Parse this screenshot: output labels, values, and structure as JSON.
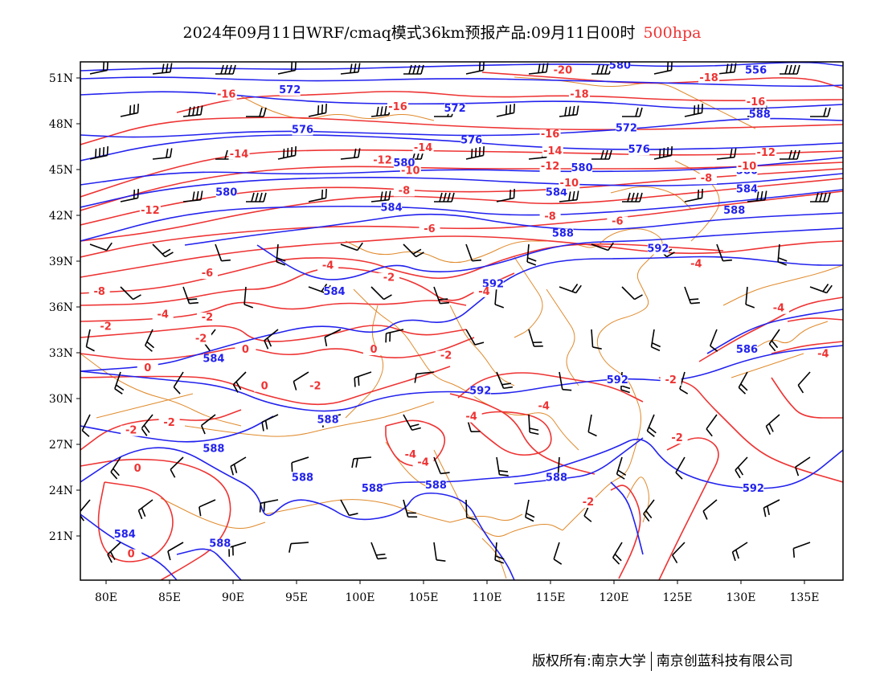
{
  "title": {
    "text": "2024年09月11日WRF/cmaq模式36km预报产品:09月11日00时",
    "level": "500hpa",
    "level_color": "#ee3333"
  },
  "map": {
    "lon_ticks": [
      "80E",
      "85E",
      "90E",
      "95E",
      "100E",
      "105E",
      "110E",
      "115E",
      "120E",
      "125E",
      "130E",
      "135E"
    ],
    "lat_ticks": [
      "51N",
      "48N",
      "45N",
      "42N",
      "39N",
      "36N",
      "33N",
      "30N",
      "27N",
      "24N",
      "21N"
    ],
    "height_color": "#2222ee",
    "temp_color": "#ee3333",
    "border_color": "#e08a2c",
    "height_labels": [
      {
        "text": "580",
        "lon": 120.5,
        "lat": 51.6
      },
      {
        "text": "556",
        "lon": 131.2,
        "lat": 51.3
      },
      {
        "text": "572",
        "lon": 94.5,
        "lat": 50.0
      },
      {
        "text": "572",
        "lon": 107.5,
        "lat": 48.8
      },
      {
        "text": "588",
        "lon": 131.5,
        "lat": 48.4
      },
      {
        "text": "576",
        "lon": 95.5,
        "lat": 47.4
      },
      {
        "text": "576",
        "lon": 108.8,
        "lat": 46.7
      },
      {
        "text": "572",
        "lon": 121.0,
        "lat": 47.5
      },
      {
        "text": "576",
        "lon": 122.0,
        "lat": 46.1
      },
      {
        "text": "580",
        "lon": 103.5,
        "lat": 45.2
      },
      {
        "text": "580",
        "lon": 117.5,
        "lat": 44.9
      },
      {
        "text": "580",
        "lon": 130.5,
        "lat": 44.7
      },
      {
        "text": "580",
        "lon": 89.5,
        "lat": 43.3
      },
      {
        "text": "584",
        "lon": 115.5,
        "lat": 43.3
      },
      {
        "text": "584",
        "lon": 130.5,
        "lat": 43.5
      },
      {
        "text": "584",
        "lon": 102.5,
        "lat": 42.3
      },
      {
        "text": "588",
        "lon": 129.5,
        "lat": 42.1
      },
      {
        "text": "588",
        "lon": 116.0,
        "lat": 40.6
      },
      {
        "text": "592",
        "lon": 123.5,
        "lat": 39.6
      },
      {
        "text": "584",
        "lon": 98.0,
        "lat": 36.8
      },
      {
        "text": "592",
        "lon": 110.5,
        "lat": 37.3
      },
      {
        "text": "586",
        "lon": 130.5,
        "lat": 33.0
      },
      {
        "text": "584",
        "lon": 88.5,
        "lat": 32.4
      },
      {
        "text": "592",
        "lon": 120.3,
        "lat": 31.0
      },
      {
        "text": "592",
        "lon": 109.5,
        "lat": 30.3
      },
      {
        "text": "588",
        "lon": 97.5,
        "lat": 28.4
      },
      {
        "text": "588",
        "lon": 88.5,
        "lat": 26.5
      },
      {
        "text": "588",
        "lon": 95.5,
        "lat": 24.6
      },
      {
        "text": "588",
        "lon": 101.0,
        "lat": 23.9
      },
      {
        "text": "588",
        "lon": 106.0,
        "lat": 24.1
      },
      {
        "text": "588",
        "lon": 115.5,
        "lat": 24.6
      },
      {
        "text": "592",
        "lon": 131.0,
        "lat": 23.9
      },
      {
        "text": "584",
        "lon": 81.5,
        "lat": 20.9
      },
      {
        "text": "588",
        "lon": 89.0,
        "lat": 20.3
      }
    ],
    "temp_labels": [
      {
        "text": "-20",
        "lon": 116.0,
        "lat": 51.3
      },
      {
        "text": "-18",
        "lon": 127.5,
        "lat": 50.8
      },
      {
        "text": "-16",
        "lon": 89.5,
        "lat": 49.7
      },
      {
        "text": "-18",
        "lon": 117.3,
        "lat": 49.7
      },
      {
        "text": "-16",
        "lon": 131.2,
        "lat": 49.2
      },
      {
        "text": "-16",
        "lon": 103.0,
        "lat": 48.9
      },
      {
        "text": "-16",
        "lon": 115.0,
        "lat": 47.1
      },
      {
        "text": "-14",
        "lon": 90.5,
        "lat": 45.8
      },
      {
        "text": "-14",
        "lon": 105.0,
        "lat": 46.2
      },
      {
        "text": "-14",
        "lon": 115.2,
        "lat": 46.0
      },
      {
        "text": "-12",
        "lon": 132.0,
        "lat": 45.9
      },
      {
        "text": "-12",
        "lon": 101.8,
        "lat": 45.4
      },
      {
        "text": "-12",
        "lon": 115.0,
        "lat": 45.0
      },
      {
        "text": "-10",
        "lon": 104.0,
        "lat": 44.7
      },
      {
        "text": "-10",
        "lon": 130.5,
        "lat": 45.0
      },
      {
        "text": "-10",
        "lon": 116.5,
        "lat": 43.9
      },
      {
        "text": "-8",
        "lon": 127.3,
        "lat": 44.2
      },
      {
        "text": "-8",
        "lon": 103.5,
        "lat": 43.4
      },
      {
        "text": "-12",
        "lon": 83.5,
        "lat": 42.1
      },
      {
        "text": "-8",
        "lon": 115.0,
        "lat": 41.7
      },
      {
        "text": "-6",
        "lon": 120.3,
        "lat": 41.4
      },
      {
        "text": "-6",
        "lon": 105.5,
        "lat": 40.9
      },
      {
        "text": "-4",
        "lon": 126.5,
        "lat": 38.6
      },
      {
        "text": "-6",
        "lon": 88.0,
        "lat": 38.0
      },
      {
        "text": "-4",
        "lon": 97.5,
        "lat": 38.5
      },
      {
        "text": "-2",
        "lon": 102.3,
        "lat": 37.7
      },
      {
        "text": "-8",
        "lon": 79.5,
        "lat": 36.8
      },
      {
        "text": "-4",
        "lon": 84.5,
        "lat": 35.3
      },
      {
        "text": "-2",
        "lon": 88.0,
        "lat": 35.1
      },
      {
        "text": "-4",
        "lon": 109.8,
        "lat": 36.8
      },
      {
        "text": "-4",
        "lon": 133.0,
        "lat": 35.7
      },
      {
        "text": "-2",
        "lon": 80.0,
        "lat": 34.5
      },
      {
        "text": "-2",
        "lon": 87.5,
        "lat": 33.7
      },
      {
        "text": "0",
        "lon": 91.0,
        "lat": 33.0
      },
      {
        "text": "0",
        "lon": 101.1,
        "lat": 33.0
      },
      {
        "text": "-2",
        "lon": 106.8,
        "lat": 32.6
      },
      {
        "text": "-4",
        "lon": 136.5,
        "lat": 32.7
      },
      {
        "text": "0",
        "lon": 83.3,
        "lat": 31.8
      },
      {
        "text": "0",
        "lon": 92.5,
        "lat": 30.6
      },
      {
        "text": "-2",
        "lon": 96.5,
        "lat": 30.6
      },
      {
        "text": "-2",
        "lon": 124.5,
        "lat": 31.0
      },
      {
        "text": "-4",
        "lon": 114.5,
        "lat": 29.3
      },
      {
        "text": "-4",
        "lon": 108.8,
        "lat": 28.6
      },
      {
        "text": "-2",
        "lon": 85.0,
        "lat": 28.2
      },
      {
        "text": "-2",
        "lon": 82.0,
        "lat": 27.7
      },
      {
        "text": "-2",
        "lon": 125.0,
        "lat": 27.2
      },
      {
        "text": "-4",
        "lon": 104.0,
        "lat": 26.1
      },
      {
        "text": "-4",
        "lon": 105.0,
        "lat": 25.6
      },
      {
        "text": "0",
        "lon": 82.5,
        "lat": 25.2
      },
      {
        "text": "-2",
        "lon": 118.0,
        "lat": 23.0
      },
      {
        "text": "0",
        "lon": 82.0,
        "lat": 19.6
      }
    ]
  },
  "footer": {
    "left": "版权所有:南京大学",
    "right": "南京创蓝科技有限公司"
  }
}
